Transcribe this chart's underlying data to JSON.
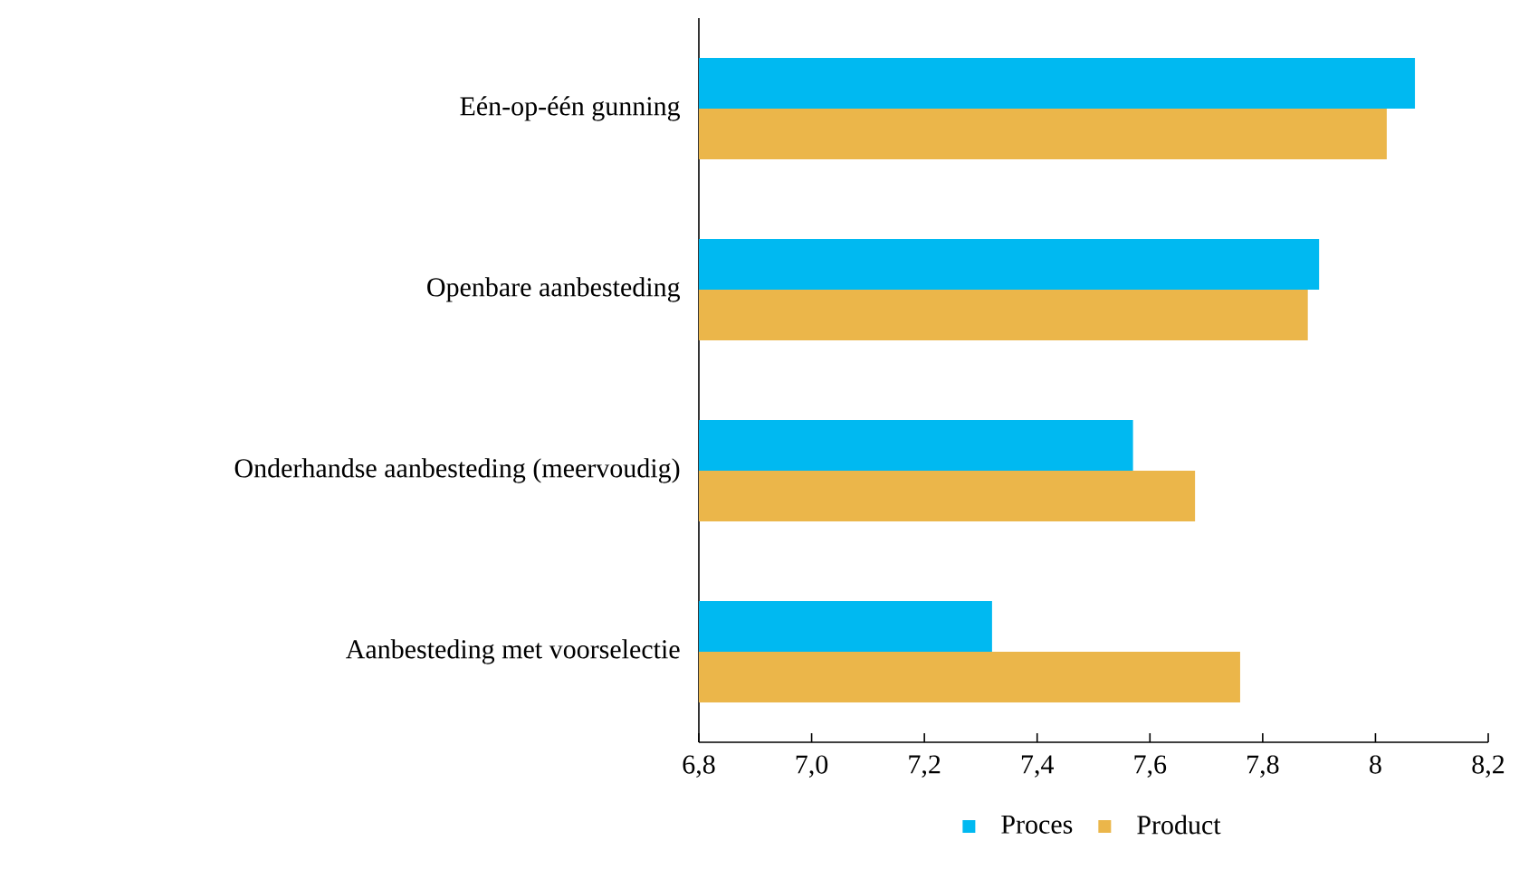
{
  "chart_data": {
    "type": "bar",
    "orientation": "horizontal",
    "categories": [
      "Eén-op-één gunning",
      "Openbare aanbesteding",
      "Onderhandse aanbesteding (meervoudig)",
      "Aanbesteding met voorselectie"
    ],
    "series": [
      {
        "name": "Proces",
        "color": "#00b9f1",
        "values": [
          8.07,
          7.9,
          7.57,
          7.32
        ]
      },
      {
        "name": "Product",
        "color": "#ebb64a",
        "values": [
          8.02,
          7.88,
          7.68,
          7.76
        ]
      }
    ],
    "xlim": [
      6.8,
      8.2
    ],
    "xticks": [
      {
        "value": 6.8,
        "label": "6,8"
      },
      {
        "value": 7.0,
        "label": "7,0"
      },
      {
        "value": 7.2,
        "label": "7,2"
      },
      {
        "value": 7.4,
        "label": "7,4"
      },
      {
        "value": 7.6,
        "label": "7,6"
      },
      {
        "value": 7.8,
        "label": "7,8"
      },
      8,
      {
        "value": 8.2,
        "label": "8,2"
      }
    ],
    "legend": "bottom"
  }
}
